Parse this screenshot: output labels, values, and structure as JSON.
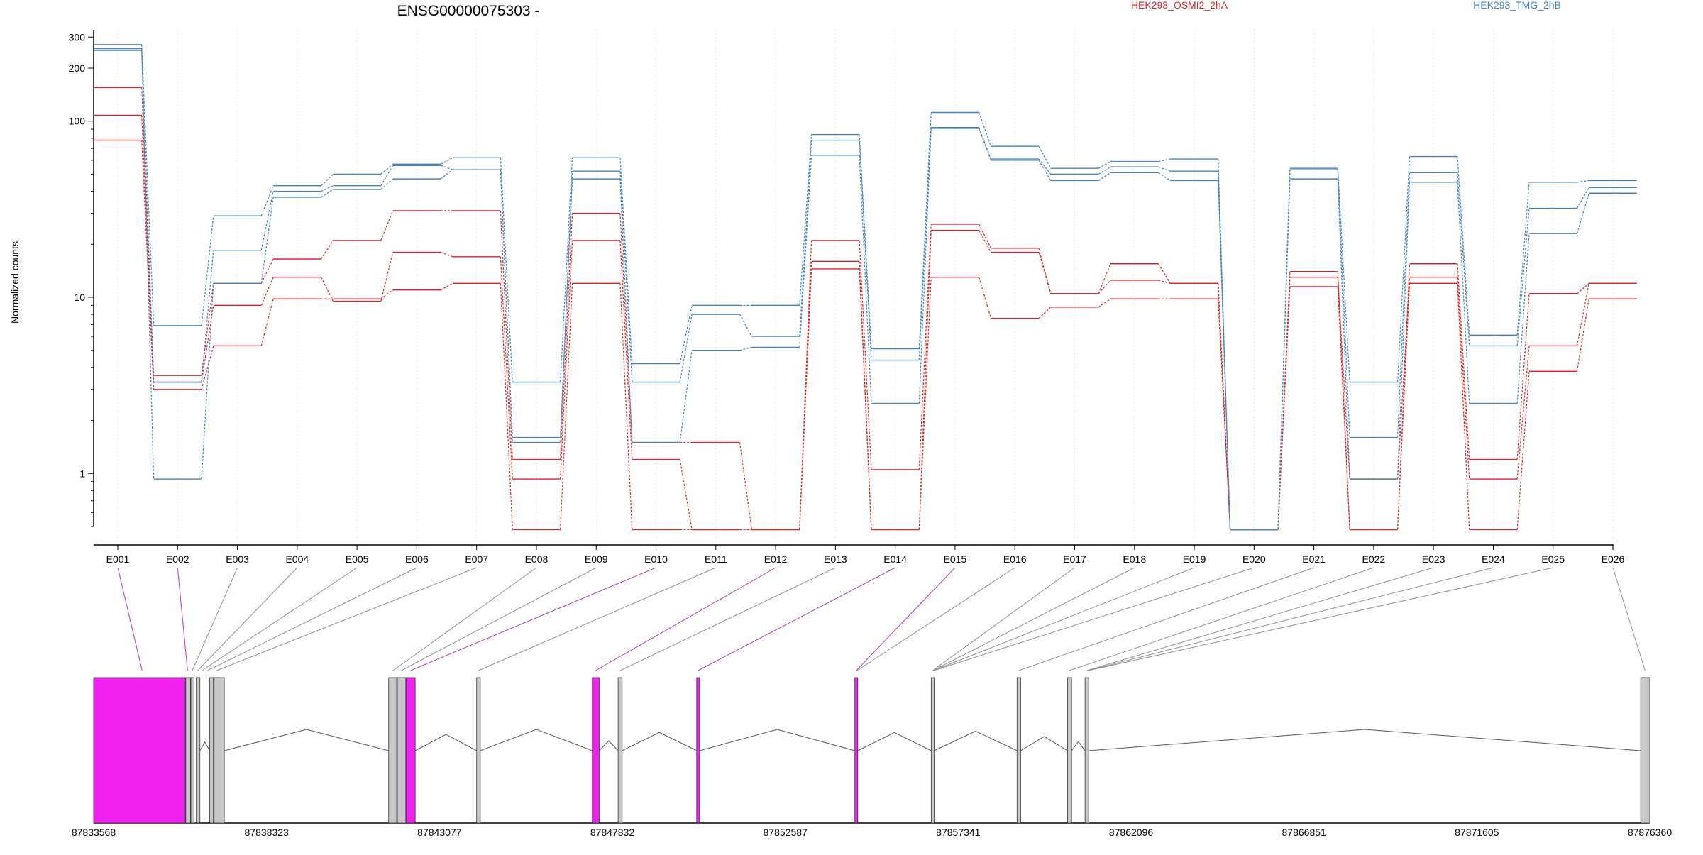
{
  "title": "ENSG00000075303 -",
  "ylabel": "Normalized counts",
  "colors": {
    "red": "#d62728",
    "blue": "#4682b4",
    "exon_highlight": "#f020f0",
    "exon_normal": "#c8c8c8",
    "connector_highlight": "#b040b0",
    "connector_normal": "#909090"
  },
  "chart_data": {
    "type": "line",
    "title": "ENSG00000075303 -",
    "ylabel": "Normalized counts",
    "xlabel": "",
    "yscale": "log",
    "ylim": [
      0.5,
      330
    ],
    "yticks": [
      1,
      10,
      100,
      200,
      300
    ],
    "categories": [
      "E001",
      "E002",
      "E003",
      "E004",
      "E005",
      "E006",
      "E007",
      "E008",
      "E009",
      "E010",
      "E011",
      "E012",
      "E013",
      "E014",
      "E015",
      "E016",
      "E017",
      "E018",
      "E019",
      "E020",
      "E021",
      "E022",
      "E023",
      "E024",
      "E025",
      "E026"
    ],
    "legend": [
      {
        "name": "HEK293_OSMI2_2hA",
        "color": "#d62728"
      },
      {
        "name": "HEK293_TMG_2hB",
        "color": "#4682b4"
      }
    ],
    "series": [
      {
        "name": "HEK293_OSMI2_2hA",
        "color": "#d62728",
        "values": [
          155,
          3.6,
          12,
          16.5,
          21,
          31,
          31,
          1.2,
          30,
          1.5,
          1.5,
          0.48,
          21,
          1.05,
          26,
          19,
          10.5,
          15.5,
          12,
          0.48,
          14,
          0.48,
          15.5,
          1.2,
          10.5,
          12
        ]
      },
      {
        "name": "HEK293_OSMI2_2hA",
        "color": "#d62728",
        "values": [
          108,
          3.3,
          9,
          13,
          9.5,
          18,
          17,
          0.93,
          21,
          1.2,
          0.48,
          0.48,
          16,
          0.48,
          24,
          18,
          10.5,
          12.5,
          12,
          0.48,
          13,
          0.93,
          13,
          0.93,
          5.3,
          12
        ]
      },
      {
        "name": "HEK293_OSMI2_2hA",
        "color": "#d62728",
        "values": [
          78,
          3.0,
          5.3,
          9.8,
          9.8,
          11,
          12,
          0.48,
          12,
          0.48,
          0.48,
          0.48,
          14.5,
          0.48,
          13,
          7.6,
          8.8,
          9.8,
          9.8,
          0.48,
          11.5,
          0.48,
          12,
          0.48,
          3.8,
          9.8
        ]
      },
      {
        "name": "HEK293_TMG_2hB",
        "color": "#4682b4",
        "values": [
          272,
          6.9,
          29,
          43,
          50,
          57,
          62,
          3.3,
          62,
          4.2,
          9,
          9,
          84,
          5.1,
          112,
          72,
          54,
          59,
          61,
          0.48,
          54,
          3.3,
          63,
          6.1,
          45,
          46
        ]
      },
      {
        "name": "HEK293_TMG_2hB",
        "color": "#4682b4",
        "values": [
          258,
          3.3,
          18.5,
          40,
          43,
          56,
          53,
          1.6,
          52,
          3.3,
          8,
          6,
          78,
          4.4,
          92,
          61,
          50,
          55,
          52,
          0.48,
          53,
          1.6,
          51,
          5.3,
          32,
          42
        ]
      },
      {
        "name": "HEK293_TMG_2hB",
        "color": "#4682b4",
        "values": [
          252,
          0.93,
          12,
          37,
          41,
          47,
          53,
          1.5,
          47,
          1.5,
          5,
          5.2,
          64,
          2.5,
          91,
          60,
          46,
          51,
          46,
          0.48,
          47,
          0.93,
          45,
          2.5,
          23,
          39
        ]
      }
    ]
  },
  "gene_model": {
    "coord_labels": [
      "87833568",
      "87838323",
      "87843077",
      "87847832",
      "87852587",
      "87857341",
      "87862096",
      "87866851",
      "87871605",
      "87876360"
    ],
    "start": 87833568,
    "end": 87876360,
    "exons": [
      {
        "start": 87833568,
        "end": 87836090,
        "highlight": true
      },
      {
        "start": 87836100,
        "end": 87836230,
        "highlight": false
      },
      {
        "start": 87836240,
        "end": 87836330,
        "highlight": false
      },
      {
        "start": 87836390,
        "end": 87836490,
        "highlight": false
      },
      {
        "start": 87836760,
        "end": 87836860,
        "highlight": false
      },
      {
        "start": 87836880,
        "end": 87837160,
        "highlight": false
      },
      {
        "start": 87841680,
        "end": 87841900,
        "highlight": false
      },
      {
        "start": 87841920,
        "end": 87842150,
        "highlight": false
      },
      {
        "start": 87842160,
        "end": 87842410,
        "highlight": true
      },
      {
        "start": 87844100,
        "end": 87844200,
        "highlight": false
      },
      {
        "start": 87847280,
        "end": 87847470,
        "highlight": true
      },
      {
        "start": 87847990,
        "end": 87848100,
        "highlight": false
      },
      {
        "start": 87850150,
        "end": 87850230,
        "highlight": true
      },
      {
        "start": 87854500,
        "end": 87854580,
        "highlight": true
      },
      {
        "start": 87856600,
        "end": 87856680,
        "highlight": false
      },
      {
        "start": 87858960,
        "end": 87859060,
        "highlight": false
      },
      {
        "start": 87860350,
        "end": 87860460,
        "highlight": false
      },
      {
        "start": 87860830,
        "end": 87860930,
        "highlight": false
      },
      {
        "start": 87876110,
        "end": 87876360,
        "highlight": false
      }
    ],
    "connectors": [
      {
        "target": 87834900,
        "highlight": true
      },
      {
        "target": 87836150,
        "highlight": true
      },
      {
        "target": 87836280,
        "highlight": false
      },
      {
        "target": 87836430,
        "highlight": false
      },
      {
        "target": 87836550,
        "highlight": false
      },
      {
        "target": 87836700,
        "highlight": false
      },
      {
        "target": 87836950,
        "highlight": false
      },
      {
        "target": 87841800,
        "highlight": false
      },
      {
        "target": 87842030,
        "highlight": false
      },
      {
        "target": 87842280,
        "highlight": true
      },
      {
        "target": 87844150,
        "highlight": false
      },
      {
        "target": 87847370,
        "highlight": true
      },
      {
        "target": 87848050,
        "highlight": false
      },
      {
        "target": 87850190,
        "highlight": true
      },
      {
        "target": 87854540,
        "highlight": true
      },
      {
        "target": 87854560,
        "highlight": false
      },
      {
        "target": 87856640,
        "highlight": false
      },
      {
        "target": 87856650,
        "highlight": false
      },
      {
        "target": 87856660,
        "highlight": false
      },
      {
        "target": 87856670,
        "highlight": false
      },
      {
        "target": 87859010,
        "highlight": false
      },
      {
        "target": 87860400,
        "highlight": false
      },
      {
        "target": 87860880,
        "highlight": false
      },
      {
        "target": 87860900,
        "highlight": false
      },
      {
        "target": 87860920,
        "highlight": false
      },
      {
        "target": 87876230,
        "highlight": false
      }
    ]
  }
}
